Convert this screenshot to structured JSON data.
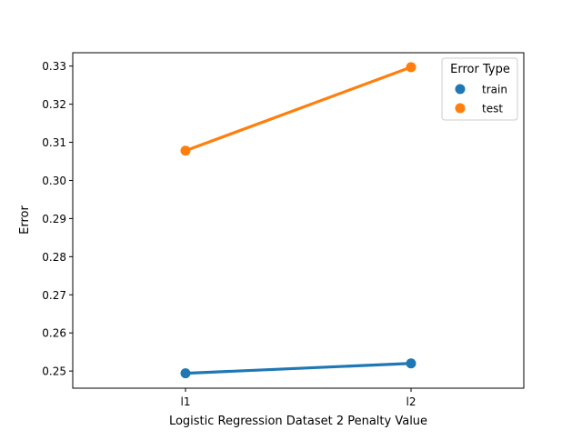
{
  "chart_data": {
    "type": "line",
    "title": "",
    "xlabel": "Logistic Regression Dataset 2 Penalty Value",
    "ylabel": "Error",
    "categories": [
      "l1",
      "l2"
    ],
    "ylim": [
      0.2455,
      0.3335
    ],
    "yticks": [
      0.25,
      0.26,
      0.27,
      0.28,
      0.29,
      0.3,
      0.31,
      0.32,
      0.33
    ],
    "ytick_labels": [
      "0.25",
      "0.26",
      "0.27",
      "0.28",
      "0.29",
      "0.30",
      "0.31",
      "0.32",
      "0.33"
    ],
    "grid": false,
    "legend": {
      "title": "Error Type",
      "position": "top-right"
    },
    "series": [
      {
        "name": "train",
        "color": "#1f77b4",
        "values": [
          0.2494,
          0.252
        ]
      },
      {
        "name": "test",
        "color": "#ff7f0e",
        "values": [
          0.3078,
          0.3297
        ]
      }
    ]
  }
}
